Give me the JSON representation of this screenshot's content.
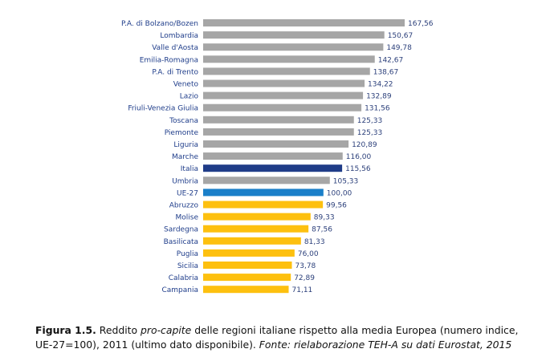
{
  "chart_data": {
    "type": "bar",
    "orientation": "horizontal",
    "categories": [
      "P.A. di Bolzano/Bozen",
      "Lombardia",
      "Valle d'Aosta",
      "Emilia-Romagna",
      "P.A. di Trento",
      "Veneto",
      "Lazio",
      "Friuli-Venezia Giulia",
      "Toscana",
      "Piemonte",
      "Liguria",
      "Marche",
      "Italia",
      "Umbria",
      "UE-27",
      "Abruzzo",
      "Molise",
      "Sardegna",
      "Basilicata",
      "Puglia",
      "Sicilia",
      "Calabria",
      "Campania"
    ],
    "values": [
      167.56,
      150.67,
      149.78,
      142.67,
      138.67,
      134.22,
      132.89,
      131.56,
      125.33,
      125.33,
      120.89,
      116.0,
      115.56,
      105.33,
      100.0,
      99.56,
      89.33,
      87.56,
      81.33,
      76.0,
      73.78,
      72.89,
      71.11
    ],
    "value_labels": [
      "167,56",
      "150,67",
      "149,78",
      "142,67",
      "138,67",
      "134,22",
      "132,89",
      "131,56",
      "125,33",
      "125,33",
      "120,89",
      "116,00",
      "115,56",
      "105,33",
      "100,00",
      "99,56",
      "89,33",
      "87,56",
      "81,33",
      "76,00",
      "73,78",
      "72,89",
      "71,11"
    ],
    "bar_colors": [
      "#a6a6a6",
      "#a6a6a6",
      "#a6a6a6",
      "#a6a6a6",
      "#a6a6a6",
      "#a6a6a6",
      "#a6a6a6",
      "#a6a6a6",
      "#a6a6a6",
      "#a6a6a6",
      "#a6a6a6",
      "#a6a6a6",
      "#1f3c88",
      "#a6a6a6",
      "#1a7fc9",
      "#fdc00f",
      "#fdc00f",
      "#fdc00f",
      "#fdc00f",
      "#fdc00f",
      "#fdc00f",
      "#fdc00f",
      "#fdc00f"
    ],
    "xlim": [
      0,
      167.56
    ],
    "grid": false,
    "title": ""
  },
  "caption": {
    "figure_label": "Figura 1.5.",
    "text_1": " Reddito ",
    "text_italic": "pro-capite",
    "text_2": " delle regioni italiane rispetto alla media Europea (numero indice,",
    "line2": "UE-27=100), 2011 (ultimo dato disponibile). ",
    "source": "Fonte: rielaborazione TEH-A su dati Eurostat, 2015"
  },
  "colors": {
    "label_text": "#1f3d8a",
    "grey_bar": "#a6a6a6",
    "italia_bar": "#1f3c88",
    "ue_bar": "#1a7fc9",
    "below_avg_bar": "#fdc00f"
  }
}
